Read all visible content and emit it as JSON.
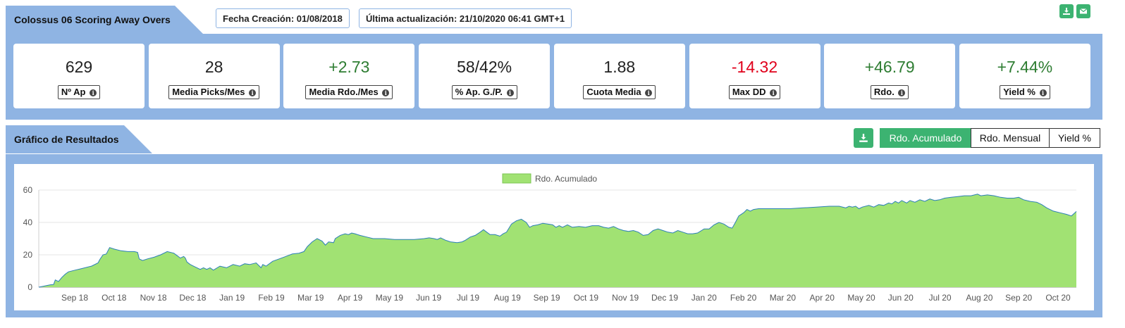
{
  "summary": {
    "title": "Colossus 06 Scoring Away Overs",
    "created_label": "Fecha Creación: 01/08/2018",
    "updated_label": "Última actualización: 21/10/2020 06:41 GMT+1"
  },
  "icons": {
    "download": "download-icon",
    "email": "envelope-icon",
    "info": "info-icon"
  },
  "colors": {
    "header": "#8fb4e3",
    "accent": "#3cb371",
    "positive": "#2e7d32",
    "negative": "#e0001b",
    "area_fill": "#a1e273",
    "area_line": "#2c7fb8"
  },
  "stats": [
    {
      "value": "629",
      "label": "Nº Ap",
      "tone": "neutral"
    },
    {
      "value": "28",
      "label": "Media Picks/Mes",
      "tone": "neutral"
    },
    {
      "value": "+2.73",
      "label": "Media Rdo./Mes",
      "tone": "pos"
    },
    {
      "value": "58/42%",
      "label": "% Ap. G./P.",
      "tone": "neutral"
    },
    {
      "value": "1.88",
      "label": "Cuota Media",
      "tone": "neutral"
    },
    {
      "value": "-14.32",
      "label": "Max DD",
      "tone": "neg"
    },
    {
      "value": "+46.79",
      "label": "Rdo.",
      "tone": "pos"
    },
    {
      "value": "+7.44%",
      "label": "Yield %",
      "tone": "pos"
    }
  ],
  "results": {
    "title": "Gráfico de Resultados",
    "toggles": [
      {
        "label": "Rdo. Acumulado",
        "active": true
      },
      {
        "label": "Rdo. Mensual",
        "active": false
      },
      {
        "label": "Yield %",
        "active": false
      }
    ]
  },
  "chart_data": {
    "type": "area",
    "title": "",
    "xlabel": "",
    "ylabel": "",
    "ylim": [
      0,
      60
    ],
    "yticks": [
      0,
      20,
      40,
      60
    ],
    "categories": [
      "Sep 18",
      "Oct 18",
      "Nov 18",
      "Dec 18",
      "Jan 19",
      "Feb 19",
      "Mar 19",
      "Apr 19",
      "May 19",
      "Jun 19",
      "Jul 19",
      "Aug 19",
      "Sep 19",
      "Oct 19",
      "Nov 19",
      "Dec 19",
      "Jan 20",
      "Feb 20",
      "Mar 20",
      "Apr 20",
      "May 20",
      "Jun 20",
      "Jul 20",
      "Aug 20",
      "Sep 20",
      "Oct 20"
    ],
    "grid": true,
    "legend_position": "top-center",
    "series": [
      {
        "name": "Rdo. Acumulado",
        "points": [
          [
            0,
            0
          ],
          [
            0.35,
            1.5
          ],
          [
            0.45,
            1.6
          ],
          [
            0.5,
            4.5
          ],
          [
            0.6,
            3.5
          ],
          [
            0.7,
            6
          ],
          [
            0.8,
            8
          ],
          [
            0.9,
            9.5
          ],
          [
            1.1,
            10.5
          ],
          [
            1.3,
            11.5
          ],
          [
            1.6,
            13
          ],
          [
            1.8,
            15
          ],
          [
            1.85,
            17
          ],
          [
            1.95,
            20
          ],
          [
            2.05,
            20.5
          ],
          [
            2.15,
            24.5
          ],
          [
            2.3,
            23.5
          ],
          [
            2.5,
            22.5
          ],
          [
            2.7,
            22
          ],
          [
            2.9,
            22
          ],
          [
            3.0,
            21.5
          ],
          [
            3.05,
            17.5
          ],
          [
            3.15,
            16.5
          ],
          [
            3.3,
            17.5
          ],
          [
            3.5,
            18.5
          ],
          [
            3.7,
            20
          ],
          [
            3.9,
            22
          ],
          [
            4.1,
            21
          ],
          [
            4.2,
            19.5
          ],
          [
            4.3,
            18
          ],
          [
            4.4,
            19
          ],
          [
            4.45,
            18
          ],
          [
            4.5,
            15.5
          ],
          [
            4.6,
            14
          ],
          [
            4.75,
            12.5
          ],
          [
            4.9,
            11
          ],
          [
            5.0,
            12
          ],
          [
            5.1,
            11
          ],
          [
            5.2,
            12
          ],
          [
            5.3,
            10.5
          ],
          [
            5.5,
            13
          ],
          [
            5.7,
            12
          ],
          [
            5.9,
            14
          ],
          [
            6.1,
            13
          ],
          [
            6.25,
            14.5
          ],
          [
            6.4,
            14
          ],
          [
            6.6,
            15
          ],
          [
            6.75,
            12
          ],
          [
            6.8,
            14
          ],
          [
            6.9,
            13
          ],
          [
            7.1,
            16
          ],
          [
            7.3,
            17.5
          ],
          [
            7.5,
            19
          ],
          [
            7.7,
            20.5
          ],
          [
            7.9,
            21
          ],
          [
            8.05,
            22
          ],
          [
            8.15,
            25
          ],
          [
            8.3,
            28
          ],
          [
            8.45,
            30
          ],
          [
            8.6,
            28.5
          ],
          [
            8.7,
            26
          ],
          [
            8.8,
            28
          ],
          [
            8.95,
            27.5
          ],
          [
            9.0,
            30
          ],
          [
            9.15,
            32
          ],
          [
            9.3,
            33
          ],
          [
            9.4,
            32.5
          ],
          [
            9.5,
            33.5
          ],
          [
            9.6,
            33
          ],
          [
            9.75,
            32
          ],
          [
            9.95,
            31
          ],
          [
            10.15,
            30
          ],
          [
            10.5,
            30
          ],
          [
            10.8,
            29.5
          ],
          [
            11.1,
            29.5
          ],
          [
            11.4,
            29.5
          ],
          [
            11.7,
            30
          ],
          [
            11.85,
            30.5
          ],
          [
            12.0,
            30
          ],
          [
            12.1,
            29.5
          ],
          [
            12.2,
            30.5
          ],
          [
            12.35,
            29
          ],
          [
            12.5,
            28
          ],
          [
            12.7,
            27.5
          ],
          [
            12.85,
            28
          ],
          [
            12.95,
            29
          ],
          [
            13.1,
            31
          ],
          [
            13.25,
            32
          ],
          [
            13.4,
            34
          ],
          [
            13.5,
            35.5
          ],
          [
            13.6,
            34
          ],
          [
            13.7,
            32.5
          ],
          [
            13.85,
            32.5
          ],
          [
            14.0,
            31.5
          ],
          [
            14.1,
            33
          ],
          [
            14.2,
            34
          ],
          [
            14.35,
            39
          ],
          [
            14.5,
            41
          ],
          [
            14.65,
            42
          ],
          [
            14.8,
            40
          ],
          [
            14.9,
            37
          ],
          [
            15.0,
            38
          ],
          [
            15.15,
            38.5
          ],
          [
            15.3,
            39.5
          ],
          [
            15.45,
            39
          ],
          [
            15.6,
            38.5
          ],
          [
            15.7,
            37
          ],
          [
            15.8,
            38
          ],
          [
            15.9,
            37
          ],
          [
            16.05,
            38.5
          ],
          [
            16.2,
            37
          ],
          [
            16.4,
            37.5
          ],
          [
            16.6,
            37
          ],
          [
            16.8,
            38
          ],
          [
            17.0,
            38
          ],
          [
            17.15,
            37
          ],
          [
            17.3,
            36.5
          ],
          [
            17.45,
            37.5
          ],
          [
            17.6,
            36
          ],
          [
            17.75,
            35
          ],
          [
            17.9,
            34.5
          ],
          [
            18.05,
            35
          ],
          [
            18.2,
            34
          ],
          [
            18.35,
            32
          ],
          [
            18.5,
            32.5
          ],
          [
            18.65,
            35
          ],
          [
            18.8,
            36
          ],
          [
            18.95,
            35
          ],
          [
            19.1,
            34
          ],
          [
            19.25,
            33.5
          ],
          [
            19.4,
            35
          ],
          [
            19.55,
            34
          ],
          [
            19.7,
            33
          ],
          [
            19.85,
            33
          ],
          [
            20.0,
            33.5
          ],
          [
            20.2,
            36
          ],
          [
            20.35,
            36
          ],
          [
            20.5,
            38.5
          ],
          [
            20.65,
            40
          ],
          [
            20.8,
            39
          ],
          [
            20.95,
            37
          ],
          [
            21.05,
            36.5
          ],
          [
            21.15,
            40
          ],
          [
            21.25,
            44
          ],
          [
            21.4,
            46
          ],
          [
            21.5,
            48
          ],
          [
            21.6,
            47
          ],
          [
            21.7,
            48
          ],
          [
            21.85,
            48.5
          ],
          [
            22.1,
            48.5
          ],
          [
            22.4,
            48.5
          ],
          [
            22.8,
            48.5
          ],
          [
            23.2,
            49
          ],
          [
            23.6,
            49.5
          ],
          [
            24.0,
            50
          ],
          [
            24.3,
            50
          ],
          [
            24.5,
            49
          ],
          [
            24.6,
            50
          ],
          [
            24.7,
            49.5
          ],
          [
            24.8,
            50
          ],
          [
            24.9,
            48.5
          ],
          [
            25.0,
            49.5
          ],
          [
            25.2,
            50.5
          ],
          [
            25.35,
            49.5
          ],
          [
            25.5,
            51
          ],
          [
            25.65,
            50.5
          ],
          [
            25.8,
            52
          ],
          [
            25.9,
            51.5
          ],
          [
            26.0,
            53
          ],
          [
            26.1,
            52
          ],
          [
            26.2,
            53.5
          ],
          [
            26.35,
            52
          ],
          [
            26.45,
            53.5
          ],
          [
            26.6,
            52.5
          ],
          [
            26.75,
            54
          ],
          [
            26.9,
            53
          ],
          [
            27.05,
            54.5
          ],
          [
            27.2,
            53.5
          ],
          [
            27.35,
            54
          ],
          [
            27.5,
            55
          ],
          [
            27.7,
            55.5
          ],
          [
            27.9,
            56
          ],
          [
            28.1,
            56.5
          ],
          [
            28.3,
            56.5
          ],
          [
            28.5,
            57.5
          ],
          [
            28.6,
            56.5
          ],
          [
            28.8,
            57
          ],
          [
            29.0,
            56.5
          ],
          [
            29.2,
            55.5
          ],
          [
            29.4,
            55
          ],
          [
            29.6,
            55
          ],
          [
            29.75,
            55.5
          ],
          [
            29.9,
            54
          ],
          [
            30.1,
            53
          ],
          [
            30.3,
            52.5
          ],
          [
            30.45,
            51
          ],
          [
            30.6,
            49
          ],
          [
            30.8,
            47
          ],
          [
            31.0,
            46
          ],
          [
            31.2,
            45
          ],
          [
            31.35,
            44
          ],
          [
            31.5,
            46.79
          ]
        ]
      }
    ]
  }
}
